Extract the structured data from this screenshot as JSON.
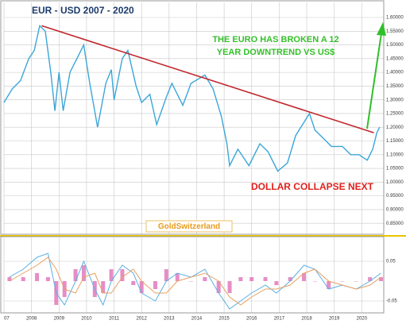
{
  "chart_data": [
    {
      "type": "line",
      "title": "EUR - USD   2007 - 2020",
      "annotations": [
        "THE EURO HAS BROKEN A 12",
        "YEAR DOWNTREND VS US$",
        "DOLLAR COLLAPSE NEXT",
        "GoldSwitzerland"
      ],
      "x": [
        2007.0,
        2007.3,
        2007.6,
        2007.9,
        2008.1,
        2008.3,
        2008.5,
        2008.7,
        2008.85,
        2009.0,
        2009.15,
        2009.4,
        2009.7,
        2009.9,
        2010.1,
        2010.4,
        2010.7,
        2010.9,
        2011.0,
        2011.3,
        2011.5,
        2011.8,
        2012.0,
        2012.3,
        2012.55,
        2012.9,
        2013.1,
        2013.5,
        2013.8,
        2014.3,
        2014.6,
        2014.9,
        2015.1,
        2015.2,
        2015.5,
        2015.9,
        2016.3,
        2016.6,
        2016.95,
        2017.3,
        2017.6,
        2018.1,
        2018.3,
        2018.7,
        2018.9,
        2019.3,
        2019.6,
        2019.9,
        2020.2,
        2020.4,
        2020.55,
        2020.65
      ],
      "series": [
        {
          "color": "#3aa6d8",
          "values": [
            1.29,
            1.34,
            1.37,
            1.45,
            1.48,
            1.57,
            1.55,
            1.4,
            1.26,
            1.4,
            1.26,
            1.4,
            1.46,
            1.5,
            1.37,
            1.2,
            1.36,
            1.41,
            1.3,
            1.45,
            1.48,
            1.35,
            1.29,
            1.32,
            1.21,
            1.31,
            1.36,
            1.28,
            1.36,
            1.39,
            1.34,
            1.24,
            1.14,
            1.06,
            1.12,
            1.06,
            1.14,
            1.11,
            1.04,
            1.07,
            1.17,
            1.25,
            1.19,
            1.15,
            1.13,
            1.13,
            1.1,
            1.1,
            1.08,
            1.12,
            1.18,
            1.2
          ]
        }
      ],
      "trendline": {
        "color": "#c0262c",
        "x": [
          2008.37,
          2020.44
        ],
        "values": [
          1.57,
          1.18
        ]
      },
      "xlim": [
        2007,
        2020.8
      ],
      "xticks": [
        {
          "value": 2007,
          "label": "07"
        },
        2008,
        2009,
        2010,
        2011,
        2012,
        2013,
        2014,
        2015,
        2016,
        2017,
        2018,
        2019,
        2020
      ],
      "ylim": [
        0.81,
        1.655
      ],
      "yticks": [
        {
          "value": 0.85,
          "label": "0.85000"
        },
        {
          "value": 0.9,
          "label": "0.90000"
        },
        {
          "value": 0.95,
          "label": "0.95000"
        },
        {
          "value": 1.0,
          "label": "1.00000"
        },
        {
          "value": 1.05,
          "label": "1.05000"
        },
        {
          "value": 1.1,
          "label": "1.10000"
        },
        {
          "value": 1.15,
          "label": "1.15000"
        },
        {
          "value": 1.2,
          "label": "1.20000"
        },
        {
          "value": 1.25,
          "label": "1.25000"
        },
        {
          "value": 1.3,
          "label": "1.30000"
        },
        {
          "value": 1.35,
          "label": "1.35000"
        },
        {
          "value": 1.4,
          "label": "1.40000"
        },
        {
          "value": 1.45,
          "label": "1.45000"
        },
        {
          "value": 1.5,
          "label": "1.50000"
        },
        {
          "value": 1.55,
          "label": "1.55000"
        },
        {
          "value": 1.6,
          "label": "1.60000"
        }
      ],
      "grid": true
    },
    {
      "type": "macd",
      "x": [
        2007.2,
        2007.7,
        2008.2,
        2008.6,
        2008.9,
        2009.2,
        2009.6,
        2009.9,
        2010.3,
        2010.6,
        2010.9,
        2011.3,
        2011.7,
        2012.0,
        2012.5,
        2012.9,
        2013.3,
        2013.8,
        2014.3,
        2014.8,
        2015.2,
        2015.6,
        2016.0,
        2016.5,
        2016.9,
        2017.4,
        2017.9,
        2018.3,
        2018.8,
        2019.3,
        2019.8,
        2020.3,
        2020.7
      ],
      "series": [
        {
          "color": "#5ab0e4",
          "values": [
            0.01,
            0.03,
            0.06,
            0.07,
            -0.03,
            -0.06,
            0.0,
            0.05,
            -0.02,
            -0.06,
            0.0,
            0.04,
            0.02,
            -0.03,
            -0.05,
            0.0,
            0.02,
            0.01,
            0.03,
            -0.03,
            -0.07,
            -0.05,
            -0.03,
            -0.01,
            -0.03,
            0.0,
            0.04,
            0.03,
            -0.02,
            -0.01,
            -0.02,
            0.0,
            0.02
          ]
        },
        {
          "color": "#e8a060",
          "values": [
            0.0,
            0.02,
            0.04,
            0.06,
            0.03,
            -0.02,
            -0.03,
            0.01,
            0.02,
            -0.03,
            -0.03,
            0.01,
            0.03,
            0.0,
            -0.03,
            -0.03,
            0.0,
            0.01,
            0.02,
            0.0,
            -0.04,
            -0.06,
            -0.04,
            -0.02,
            -0.02,
            -0.01,
            0.02,
            0.03,
            0.0,
            -0.01,
            -0.02,
            -0.01,
            0.01
          ]
        }
      ],
      "histogram": {
        "color": "#e070b8",
        "values": [
          0.01,
          0.01,
          0.02,
          0.01,
          -0.06,
          -0.04,
          0.03,
          0.04,
          -0.04,
          -0.03,
          0.03,
          0.03,
          -0.01,
          -0.03,
          -0.02,
          0.03,
          0.02,
          0.0,
          0.01,
          -0.03,
          -0.03,
          0.01,
          0.01,
          0.01,
          -0.01,
          0.01,
          0.02,
          0.0,
          -0.02,
          0.0,
          0.0,
          0.01,
          0.01
        ]
      },
      "ylim": [
        -0.08,
        0.11
      ],
      "yticks": [
        {
          "value": -0.05,
          "label": "-0.05"
        },
        0.05
      ],
      "grid": true
    }
  ]
}
